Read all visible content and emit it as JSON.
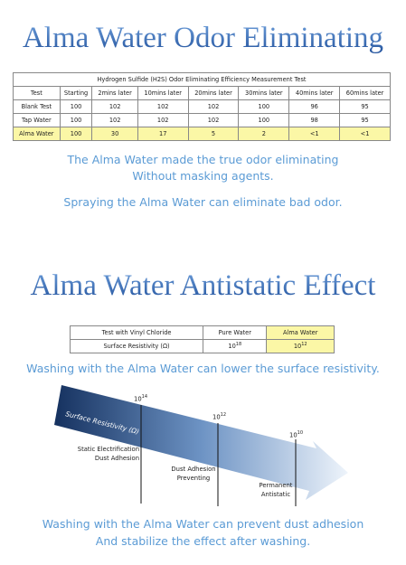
{
  "odor": {
    "title": "Alma Water Odor Eliminating",
    "table": {
      "caption": "Hydrogen Sulfide (H2S) Odor Eliminating Efficiency Measurement Test",
      "header": [
        "Test",
        "Starting",
        "2mins later",
        "10mins later",
        "20mins later",
        "30mins later",
        "40mins later",
        "60mins later"
      ],
      "rows": [
        [
          "Blank Test",
          100,
          102,
          102,
          102,
          100,
          96,
          95
        ],
        [
          "Tap Water",
          100,
          102,
          102,
          102,
          100,
          98,
          95
        ],
        [
          "Alma Water",
          100,
          30,
          17,
          5,
          2,
          "<1",
          "<1"
        ]
      ]
    },
    "notes": [
      "The Alma Water made the true odor eliminating",
      "Without masking agents.",
      "Spraying the Alma Water can eliminate bad odor."
    ]
  },
  "antistatic": {
    "title": "Alma Water Antistatic Effect",
    "table": {
      "header": [
        "Test with Vinyl Chloride",
        "Pure Water",
        "Alma Water"
      ],
      "row_label": "Surface Resistivity (Ω)",
      "values": [
        {
          "base": "10",
          "exponent": "18"
        },
        {
          "base": "10",
          "exponent": "12"
        }
      ]
    },
    "note": "Washing with the Alma Water can lower the surface resistivity.",
    "diagram": {
      "arrow_label": "Surface Resistivity (Ω)",
      "markers": [
        {
          "base": "10",
          "exponent": "14",
          "label": [
            "Static Electrification",
            "Dust Adhesion"
          ]
        },
        {
          "base": "10",
          "exponent": "12",
          "label": [
            "Dust Adhesion",
            "Preventing"
          ]
        },
        {
          "base": "10",
          "exponent": "10",
          "label": [
            "Permanent",
            "Antistatic"
          ]
        }
      ]
    },
    "footer": [
      "Washing with the Alma Water can prevent dust adhesion",
      "And stabilize the effect after washing."
    ]
  }
}
